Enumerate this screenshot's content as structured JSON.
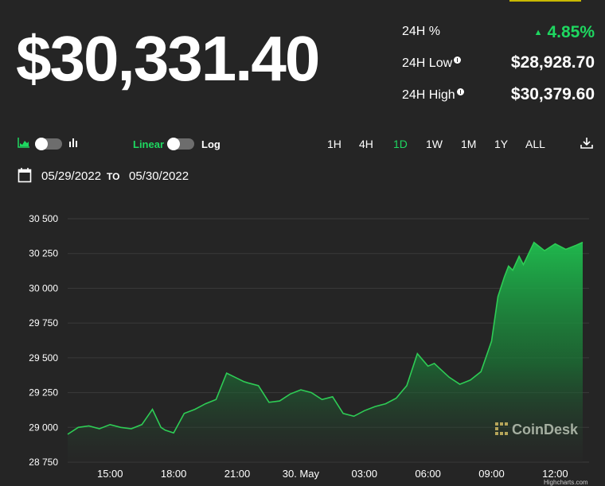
{
  "price": "$30,331.40",
  "stats": [
    {
      "label": "24H %",
      "value": "4.85%"
    },
    {
      "label": "24H Low",
      "value": "$28,928.70"
    },
    {
      "label": "24H High",
      "value": "$30,379.60"
    }
  ],
  "controls": {
    "linear_label": "Linear",
    "log_label": "Log",
    "chart_area_icon": "area-chart-icon",
    "chart_bar_icon": "bar-chart-icon",
    "download_icon": "download-icon",
    "calendar_icon": "calendar-icon"
  },
  "ranges": [
    "1H",
    "4H",
    "1D",
    "1W",
    "1M",
    "1Y",
    "ALL"
  ],
  "active_range": "1D",
  "date_range": {
    "from": "05/29/2022",
    "to_label": "TO",
    "to": "05/30/2022"
  },
  "colors": {
    "accent": "#1ed760",
    "background": "#252525",
    "line": "#2ecc55"
  },
  "watermark": "CoinDesk",
  "credit": "Highcharts.com",
  "chart_data": {
    "type": "area",
    "ylim": [
      28750,
      30500
    ],
    "yticks": [
      28750,
      29000,
      29250,
      29500,
      29750,
      30000,
      30250,
      30500
    ],
    "ytick_labels": [
      "28 750",
      "29 000",
      "29 250",
      "29 500",
      "29 750",
      "30 000",
      "30 250",
      "30 500"
    ],
    "xticks": [
      15,
      18,
      21,
      24,
      27,
      30,
      33,
      36
    ],
    "xtick_labels": [
      "15:00",
      "18:00",
      "21:00",
      "30. May",
      "03:00",
      "06:00",
      "09:00",
      "12:00"
    ],
    "xlim": [
      13.0,
      37.6
    ],
    "grid": true,
    "series": [
      {
        "x": [
          13.0,
          13.5,
          14.0,
          14.5,
          15.0,
          15.5,
          16.0,
          16.5,
          17.0,
          17.4,
          17.6,
          18.0,
          18.5,
          19.0,
          19.5,
          20.0,
          20.5,
          20.9,
          21.3,
          21.5,
          22.0,
          22.5,
          23.0,
          23.5,
          24.0,
          24.5,
          25.0,
          25.5,
          26.0,
          26.5,
          27.0,
          27.5,
          28.0,
          28.5,
          29.0,
          29.5,
          30.0,
          30.3,
          30.5,
          31.0,
          31.5,
          32.0,
          32.5,
          33.0,
          33.3,
          33.6,
          33.8,
          34.0,
          34.3,
          34.5,
          35.0,
          35.5,
          36.0,
          36.5,
          37.0,
          37.3
        ],
        "y": [
          28950,
          29000,
          29010,
          28990,
          29020,
          29000,
          28990,
          29020,
          29130,
          29000,
          28980,
          28960,
          29100,
          29130,
          29170,
          29200,
          29390,
          29360,
          29330,
          29320,
          29300,
          29180,
          29190,
          29240,
          29270,
          29250,
          29200,
          29220,
          29100,
          29080,
          29120,
          29150,
          29170,
          29210,
          29300,
          29530,
          29440,
          29460,
          29430,
          29360,
          29310,
          29340,
          29400,
          29620,
          29940,
          30080,
          30160,
          30130,
          30230,
          30170,
          30330,
          30270,
          30320,
          30280,
          30310,
          30331
        ]
      }
    ]
  }
}
